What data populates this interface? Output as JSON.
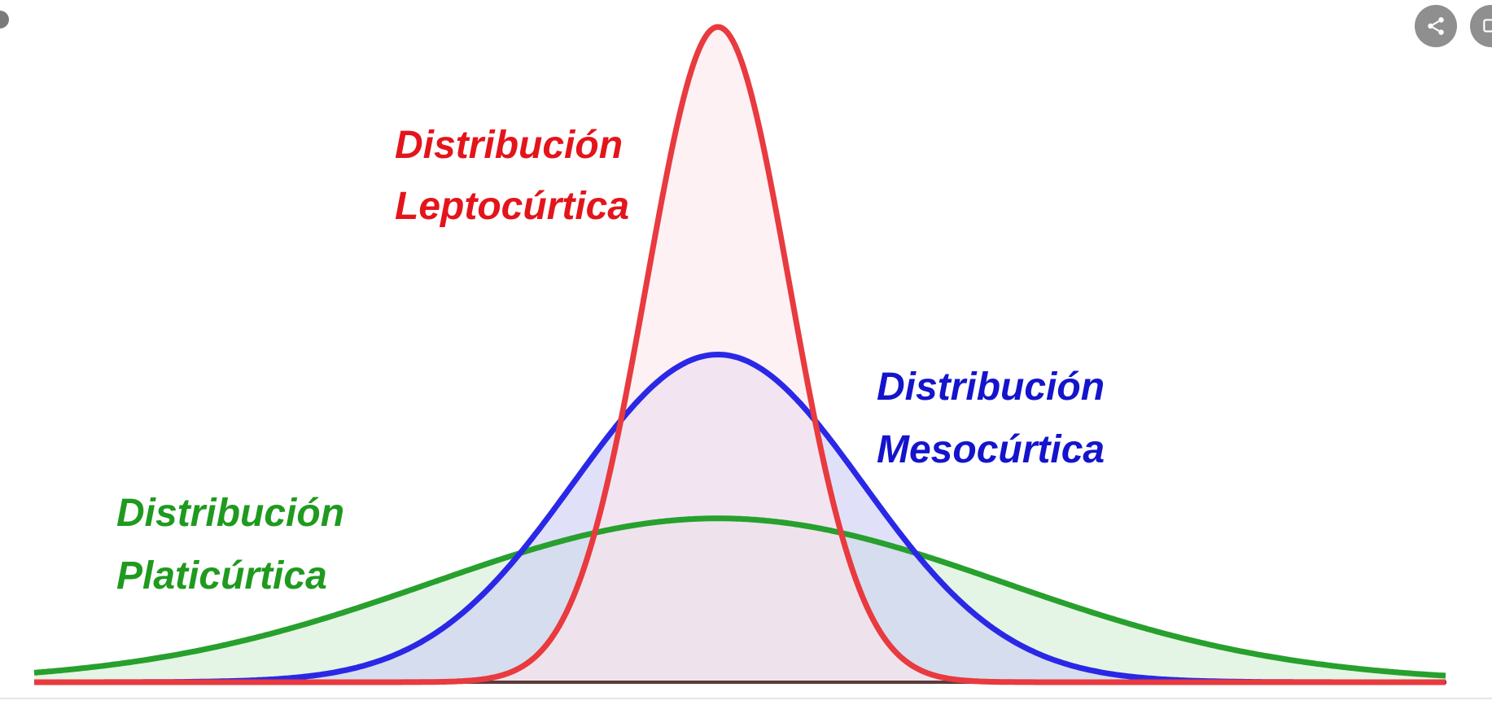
{
  "diagram": {
    "curves": [
      {
        "id": "leptocurtica",
        "label_line1": "Distribución",
        "label_line2": "Leptocúrtica",
        "stroke_color": "#e83a3f",
        "fill_color": "#fde8ec",
        "relative_peak": 1.0
      },
      {
        "id": "mesocurtica",
        "label_line1": "Distribución",
        "label_line2": "Mesocúrtica",
        "stroke_color": "#2a28e6",
        "fill_color": "#cbcdf3",
        "relative_peak": 0.5
      },
      {
        "id": "platicurtica",
        "label_line1": "Distribución",
        "label_line2": "Platicúrtica",
        "stroke_color": "#27a02d",
        "fill_color": "#d3efd4",
        "relative_peak": 0.25
      }
    ]
  },
  "toolbar": {
    "share_icon": "share-icon",
    "open_icon": "external-link-icon"
  }
}
